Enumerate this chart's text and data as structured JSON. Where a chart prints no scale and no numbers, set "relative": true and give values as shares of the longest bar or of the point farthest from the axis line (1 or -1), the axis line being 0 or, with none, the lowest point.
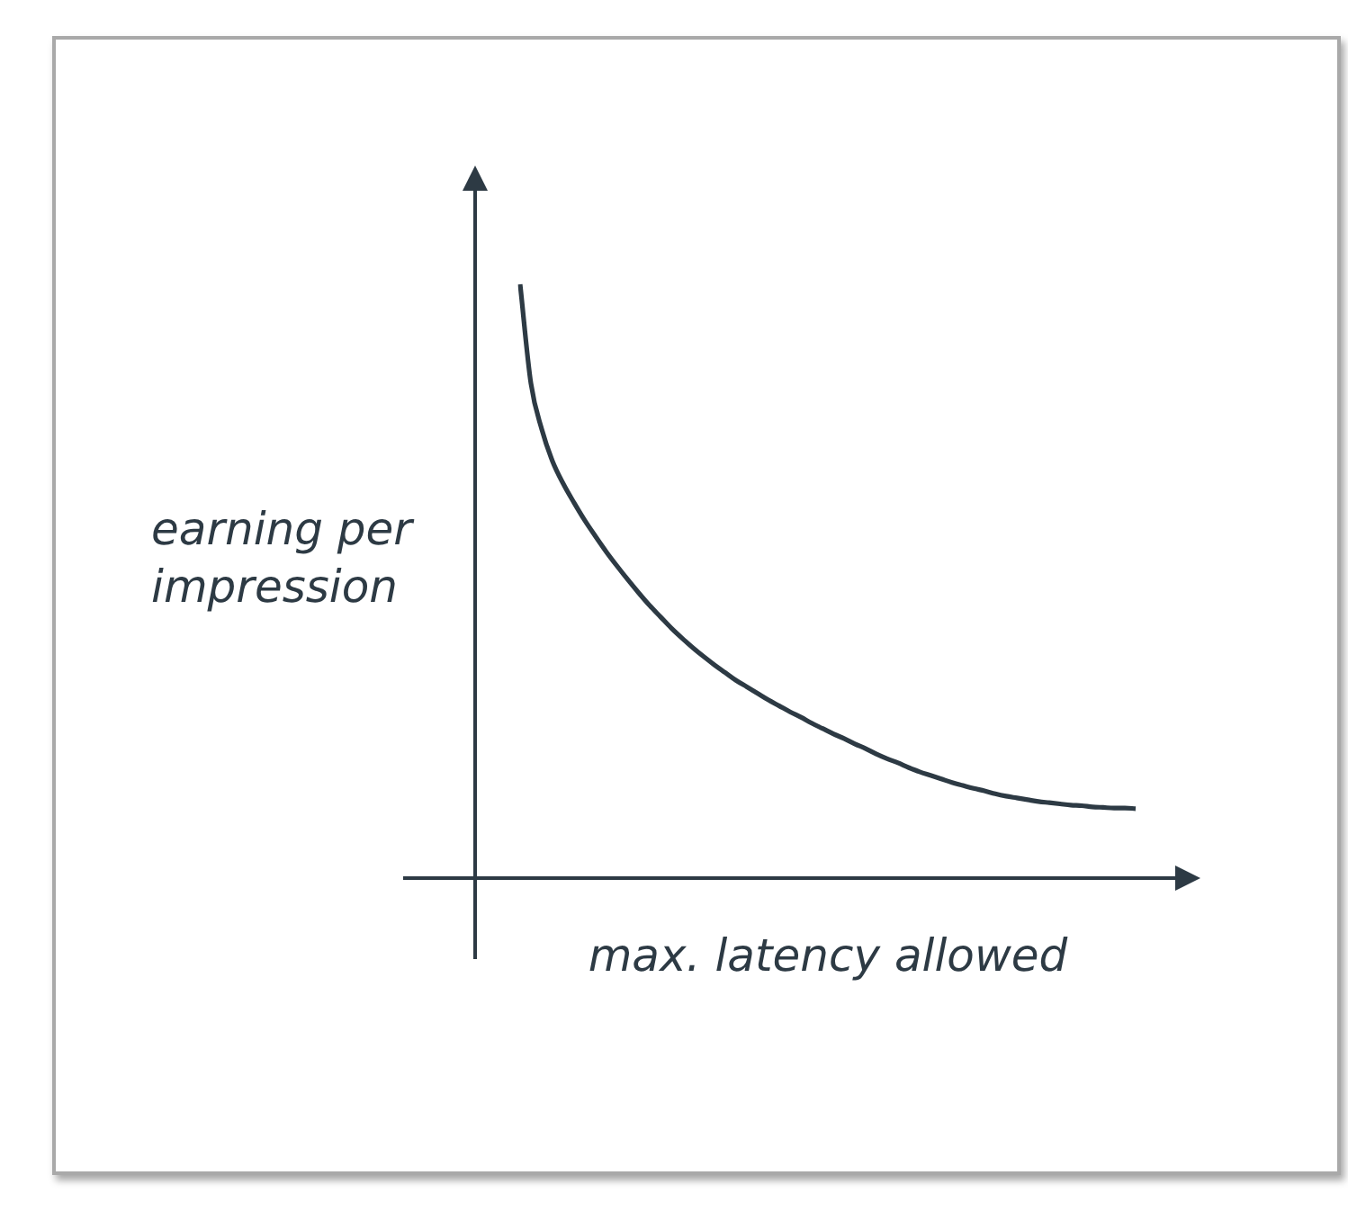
{
  "chart_data": {
    "type": "line",
    "relative": true,
    "xlabel": "max. latency allowed",
    "ylabel": "earning per impression",
    "categories": [
      null,
      null,
      null,
      null,
      null,
      null,
      null,
      null,
      null,
      null,
      null,
      null,
      null,
      null,
      null,
      null,
      null,
      null,
      null,
      null,
      null,
      null,
      null,
      null,
      null,
      null,
      null,
      null,
      null,
      null,
      null,
      null,
      null,
      null,
      null,
      null,
      null,
      null,
      null,
      null,
      null,
      null,
      null,
      null,
      null,
      null,
      null,
      null,
      null,
      null,
      null,
      null,
      null,
      null,
      null,
      null,
      null,
      null
    ],
    "values": [
      1.0,
      0.833,
      0.756,
      0.702,
      0.664,
      0.632,
      0.602,
      0.575,
      0.549,
      0.525,
      0.502,
      0.48,
      0.459,
      0.44,
      0.421,
      0.404,
      0.388,
      0.373,
      0.359,
      0.346,
      0.333,
      0.322,
      0.311,
      0.3,
      0.29,
      0.28,
      0.271,
      0.261,
      0.252,
      0.243,
      0.235,
      0.226,
      0.218,
      0.209,
      0.201,
      0.194,
      0.186,
      0.179,
      0.173,
      0.167,
      0.161,
      0.156,
      0.151,
      0.147,
      0.142,
      0.138,
      0.135,
      0.132,
      0.129,
      0.127,
      0.125,
      0.123,
      0.122,
      0.12,
      0.119,
      0.118,
      0.118,
      0.117
    ],
    "color": "#2d3a44",
    "marker": "none",
    "line_style": "solid"
  }
}
